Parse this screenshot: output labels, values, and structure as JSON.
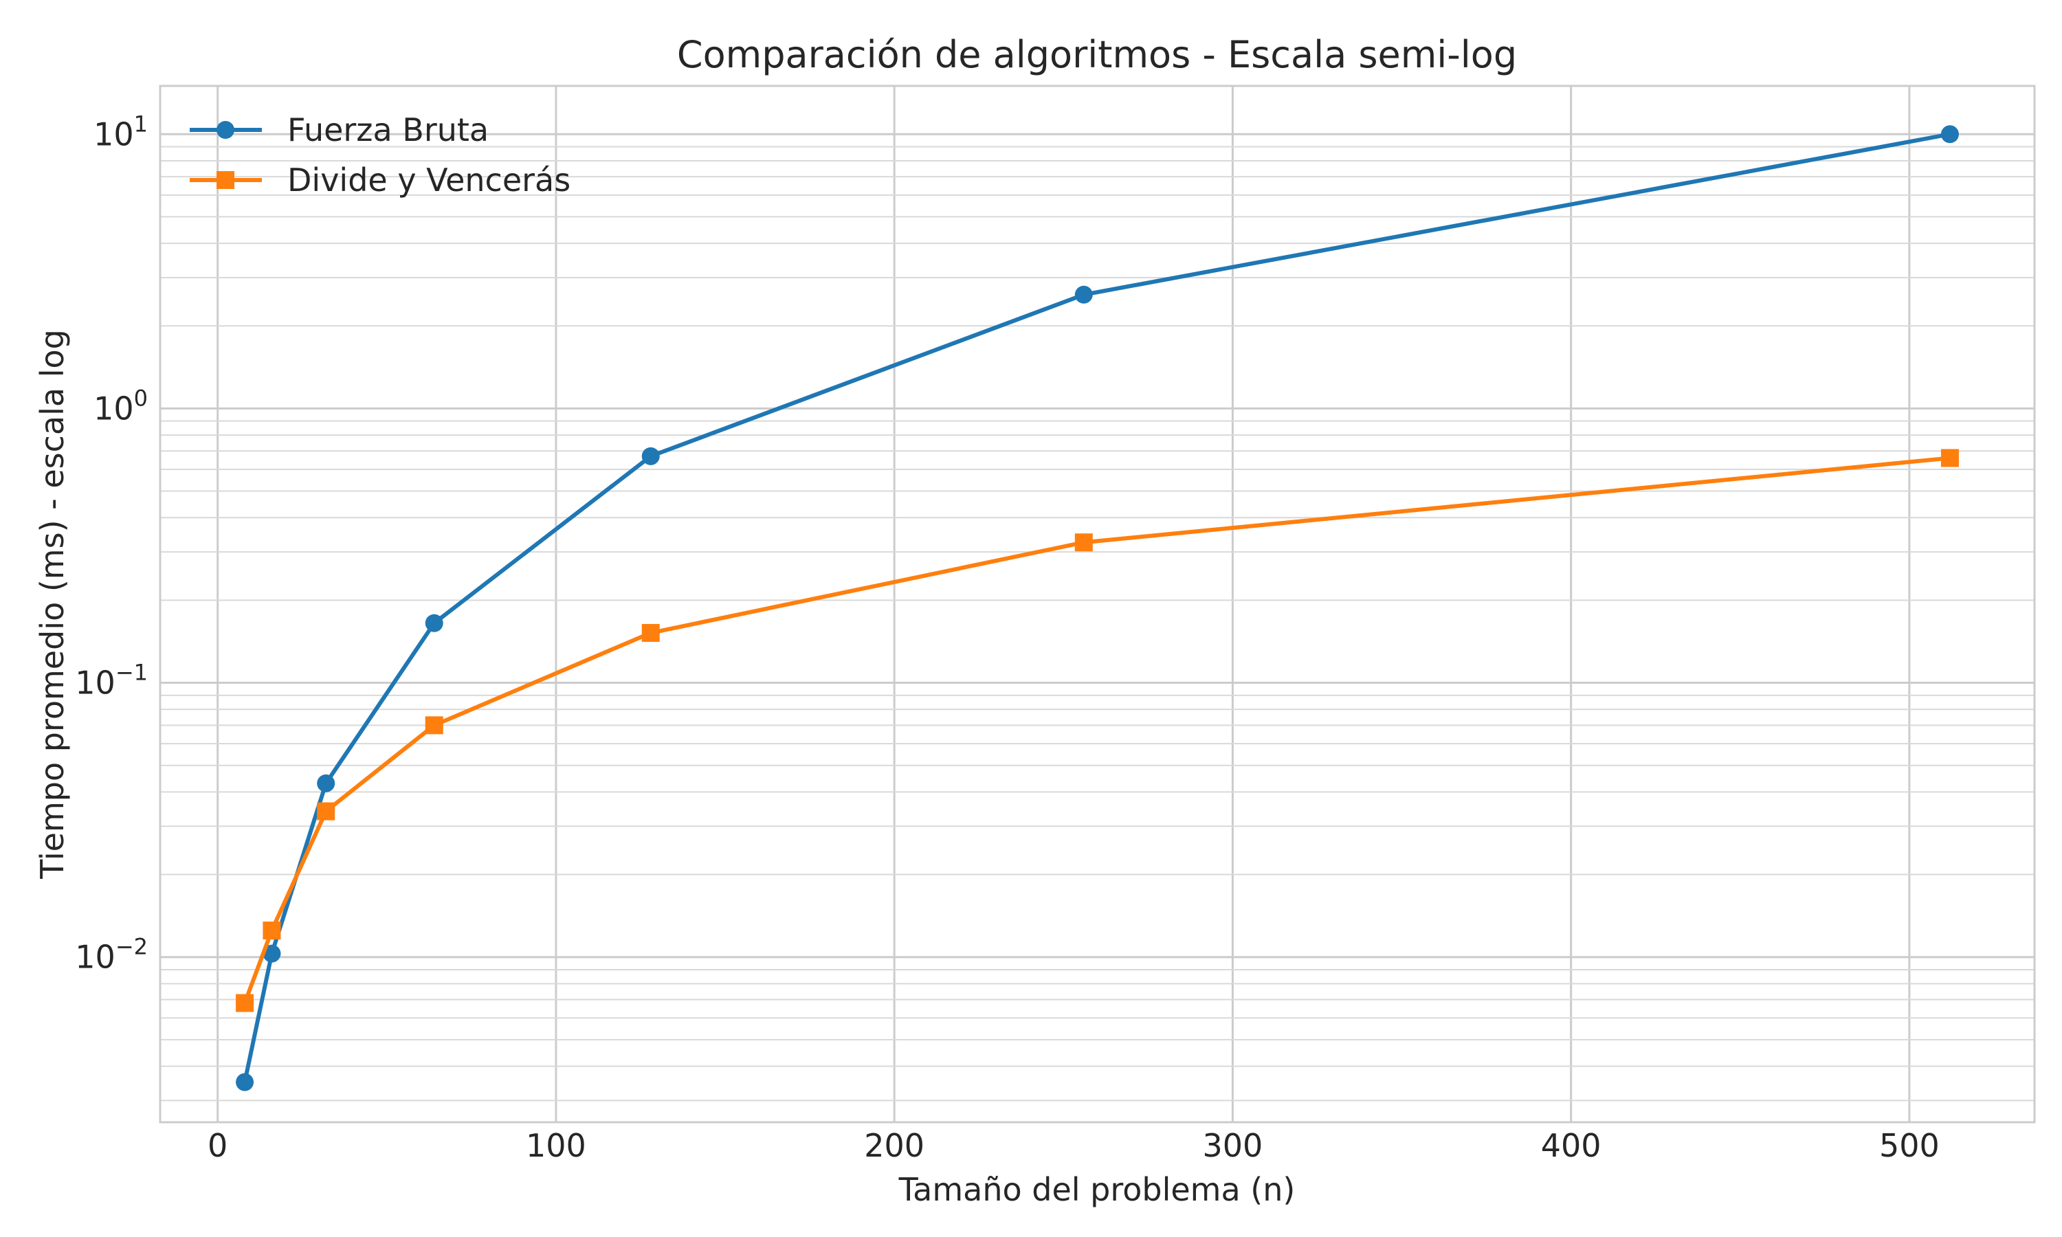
{
  "chart_data": {
    "type": "line",
    "title": "Comparación de algoritmos - Escala semi-log",
    "xlabel": "Tamaño del problema (n)",
    "ylabel": "Tiempo promedio (ms) - escala log",
    "yscale": "log",
    "xlim": [
      -17,
      537
    ],
    "ylim": [
      0.0025,
      15
    ],
    "x_ticks": [
      0,
      100,
      200,
      300,
      400,
      500
    ],
    "y_ticks": [
      {
        "value": 10,
        "base": "10",
        "exp": "1"
      },
      {
        "value": 1,
        "base": "10",
        "exp": "0"
      },
      {
        "value": 0.1,
        "base": "10",
        "exp": "−1"
      },
      {
        "value": 0.01,
        "base": "10",
        "exp": "−2"
      }
    ],
    "grid": true,
    "legend": "top-left",
    "series": [
      {
        "name": "Fuerza Bruta",
        "color": "#1f77b4",
        "marker": "circle",
        "x": [
          8,
          16,
          32,
          64,
          128,
          256,
          512
        ],
        "y": [
          0.0035,
          0.0103,
          0.043,
          0.165,
          0.67,
          2.6,
          10.0
        ]
      },
      {
        "name": "Divide y Vencerás",
        "color": "#ff7f0e",
        "marker": "square",
        "x": [
          8,
          16,
          32,
          64,
          128,
          256,
          512
        ],
        "y": [
          0.0068,
          0.0125,
          0.034,
          0.07,
          0.152,
          0.325,
          0.66
        ]
      }
    ]
  }
}
